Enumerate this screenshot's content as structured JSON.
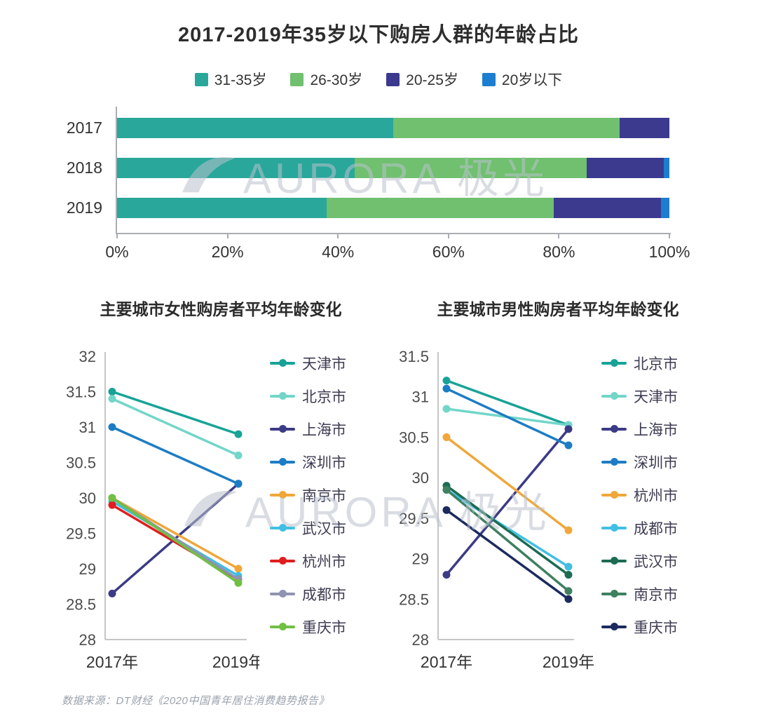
{
  "title": "2017-2019年35岁以下购房人群的年龄占比",
  "watermark": "AURORA 极光",
  "source": "数据来源：DT财经《2020中国青年居住消费趋势报告》",
  "chart_data": [
    {
      "type": "bar",
      "stacked": true,
      "orientation": "horizontal",
      "legend_position": "top",
      "categories": [
        "2017",
        "2018",
        "2019"
      ],
      "series": [
        {
          "name": "31-35岁",
          "color": "#29a79b",
          "values": [
            50,
            43,
            38
          ]
        },
        {
          "name": "26-30岁",
          "color": "#70c06f",
          "values": [
            41,
            42,
            41
          ]
        },
        {
          "name": "20-25岁",
          "color": "#3b3a8f",
          "values": [
            9,
            14,
            19.5
          ]
        },
        {
          "name": "20岁以下",
          "color": "#1c7ed0",
          "values": [
            0,
            1,
            1.5
          ]
        }
      ],
      "xlim": [
        0,
        100
      ],
      "x_ticks": [
        "0%",
        "20%",
        "40%",
        "60%",
        "80%",
        "100%"
      ]
    },
    {
      "type": "line",
      "title": "主要城市女性购房者平均年龄变化",
      "x": [
        "2017年",
        "2019年"
      ],
      "ylim": [
        28,
        32
      ],
      "y_tick_step": 0.5,
      "legend_position": "right",
      "grid": false,
      "series": [
        {
          "name": "天津市",
          "color": "#18a397",
          "values": [
            31.5,
            30.9
          ]
        },
        {
          "name": "北京市",
          "color": "#72d6c9",
          "values": [
            31.4,
            30.6
          ]
        },
        {
          "name": "上海市",
          "color": "#3c3b85",
          "values": [
            28.65,
            30.2
          ]
        },
        {
          "name": "深圳市",
          "color": "#1d7dc4",
          "values": [
            31.0,
            30.2
          ]
        },
        {
          "name": "南京市",
          "color": "#f0a73a",
          "values": [
            30.0,
            29.0
          ]
        },
        {
          "name": "武汉市",
          "color": "#41bfe3",
          "values": [
            29.95,
            28.9
          ]
        },
        {
          "name": "杭州市",
          "color": "#e01e1e",
          "values": [
            29.9,
            28.85
          ]
        },
        {
          "name": "成都市",
          "color": "#9093b1",
          "values": [
            30.0,
            28.85
          ]
        },
        {
          "name": "重庆市",
          "color": "#71bf45",
          "values": [
            30.0,
            28.8
          ]
        }
      ]
    },
    {
      "type": "line",
      "title": "主要城市男性购房者平均年龄变化",
      "x": [
        "2017年",
        "2019年"
      ],
      "ylim": [
        28,
        31.5
      ],
      "y_tick_step": 0.5,
      "legend_position": "right",
      "grid": false,
      "series": [
        {
          "name": "北京市",
          "color": "#18a397",
          "values": [
            31.2,
            30.65
          ]
        },
        {
          "name": "天津市",
          "color": "#72d6c9",
          "values": [
            30.85,
            30.65
          ]
        },
        {
          "name": "上海市",
          "color": "#3c3b85",
          "values": [
            28.8,
            30.6
          ]
        },
        {
          "name": "深圳市",
          "color": "#1d7dc4",
          "values": [
            31.1,
            30.4
          ]
        },
        {
          "name": "杭州市",
          "color": "#f0a73a",
          "values": [
            30.5,
            29.35
          ]
        },
        {
          "name": "成都市",
          "color": "#41bfe3",
          "values": [
            29.85,
            28.9
          ]
        },
        {
          "name": "武汉市",
          "color": "#1c6b52",
          "values": [
            29.9,
            28.8
          ]
        },
        {
          "name": "南京市",
          "color": "#3f8060",
          "values": [
            29.85,
            28.6
          ]
        },
        {
          "name": "重庆市",
          "color": "#1c2a5e",
          "values": [
            29.6,
            28.5
          ]
        }
      ]
    }
  ]
}
